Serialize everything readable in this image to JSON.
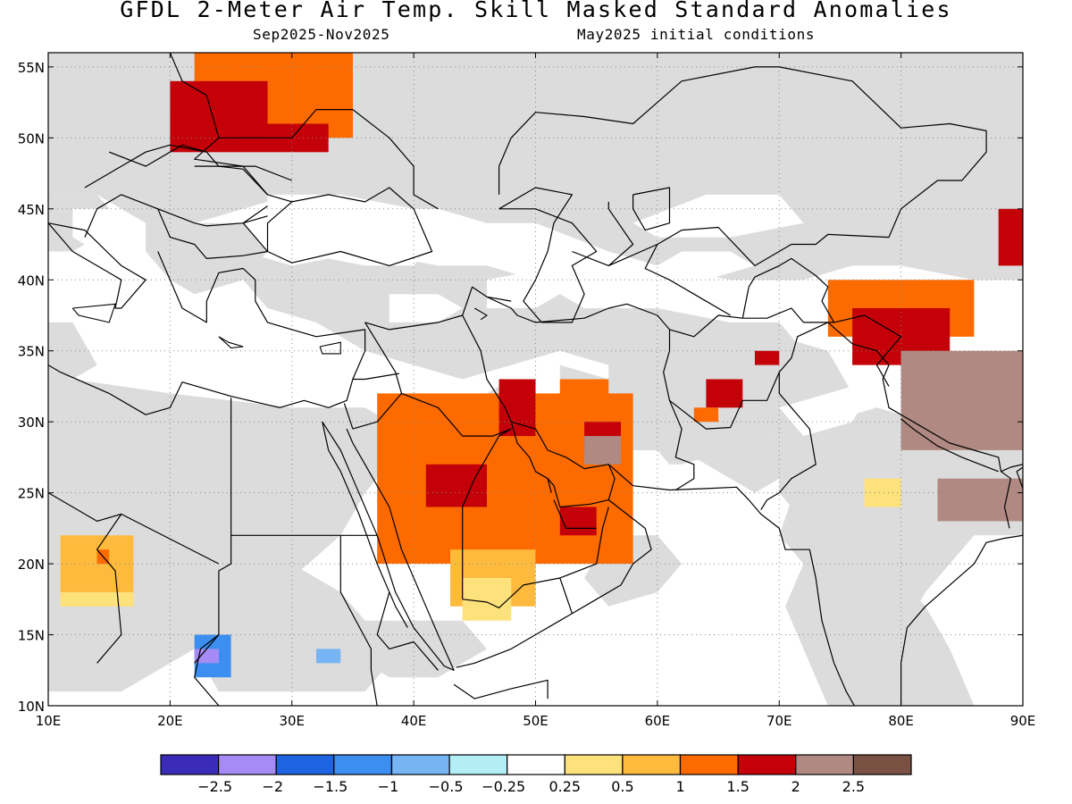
{
  "title": "GFDL 2-Meter Air Temp. Skill Masked Standard Anomalies",
  "subtitle_left": "Sep2025-Nov2025",
  "subtitle_right": "May2025 initial conditions",
  "map": {
    "lon_range": [
      10,
      90
    ],
    "lat_range": [
      10,
      56
    ],
    "lat_labels": [
      "10N",
      "15N",
      "20N",
      "25N",
      "30N",
      "35N",
      "40N",
      "45N",
      "50N",
      "55N"
    ],
    "lon_labels": [
      "10E",
      "20E",
      "30E",
      "40E",
      "50E",
      "60E",
      "70E",
      "80E",
      "90E"
    ],
    "ocean_color": "#ffffff",
    "masked_color": "#dcdcdc"
  },
  "colorbar": {
    "colors": [
      "#3a2cb8",
      "#a78bf5",
      "#1e64e0",
      "#3c8ef0",
      "#76b4f4",
      "#b2eef4",
      "#ffffff",
      "#fde27c",
      "#fdba3c",
      "#fd6a00",
      "#c40008",
      "#b08a82",
      "#7a5244"
    ],
    "labels": [
      "-2.5",
      "-2",
      "-1.5",
      "-1",
      "-0.5",
      "-0.25",
      "0.25",
      "0.5",
      "1",
      "1.5",
      "2",
      "2.5"
    ]
  },
  "anomaly_regions": [
    {
      "level": "1.5",
      "lon": [
        22,
        35
      ],
      "lat": [
        50,
        56
      ]
    },
    {
      "level": "2",
      "lon": [
        20,
        28
      ],
      "lat": [
        49,
        54
      ]
    },
    {
      "level": "2",
      "lon": [
        28,
        33
      ],
      "lat": [
        49,
        51
      ]
    },
    {
      "level": "1.5",
      "lon": [
        37,
        58
      ],
      "lat": [
        20,
        32
      ]
    },
    {
      "level": "2",
      "lon": [
        41,
        46
      ],
      "lat": [
        24,
        27
      ]
    },
    {
      "level": "1",
      "lon": [
        43,
        50
      ],
      "lat": [
        17,
        21
      ]
    },
    {
      "level": "0.5",
      "lon": [
        44,
        48
      ],
      "lat": [
        16,
        19
      ]
    },
    {
      "level": "2",
      "lon": [
        47,
        50
      ],
      "lat": [
        29,
        33
      ]
    },
    {
      "level": "1.5",
      "lon": [
        52,
        56
      ],
      "lat": [
        30,
        33
      ]
    },
    {
      "level": "2",
      "lon": [
        54,
        57
      ],
      "lat": [
        28,
        30
      ]
    },
    {
      "level": "2.5",
      "lon": [
        54,
        57
      ],
      "lat": [
        27,
        29
      ]
    },
    {
      "level": "2",
      "lon": [
        52,
        55
      ],
      "lat": [
        22,
        24
      ]
    },
    {
      "level": "1.5",
      "lon": [
        74,
        86
      ],
      "lat": [
        36,
        40
      ]
    },
    {
      "level": "2",
      "lon": [
        76,
        84
      ],
      "lat": [
        34,
        38
      ]
    },
    {
      "level": "2.5",
      "lon": [
        80,
        90
      ],
      "lat": [
        28,
        35
      ]
    },
    {
      "level": "2.5",
      "lon": [
        83,
        86
      ],
      "lat": [
        31,
        33
      ]
    },
    {
      "level": "2",
      "lon": [
        88,
        90
      ],
      "lat": [
        41,
        45
      ]
    },
    {
      "level": "1",
      "lon": [
        11,
        17
      ],
      "lat": [
        17,
        22
      ]
    },
    {
      "level": "0.5",
      "lon": [
        11,
        17
      ],
      "lat": [
        17,
        18
      ]
    },
    {
      "level": "1.5",
      "lon": [
        14,
        15
      ],
      "lat": [
        20,
        21
      ]
    },
    {
      "level": "-1.5",
      "lon": [
        22,
        25
      ],
      "lat": [
        12,
        15
      ]
    },
    {
      "level": "-2",
      "lon": [
        22,
        24
      ],
      "lat": [
        13,
        14
      ]
    },
    {
      "level": "-1",
      "lon": [
        32,
        34
      ],
      "lat": [
        13,
        14
      ]
    },
    {
      "level": "2",
      "lon": [
        64,
        67
      ],
      "lat": [
        31,
        33
      ]
    },
    {
      "level": "1.5",
      "lon": [
        63,
        65
      ],
      "lat": [
        30,
        31
      ]
    },
    {
      "level": "2",
      "lon": [
        68,
        70
      ],
      "lat": [
        34,
        35
      ]
    },
    {
      "level": "0.5",
      "lon": [
        77,
        80
      ],
      "lat": [
        24,
        26
      ]
    },
    {
      "level": "2.5",
      "lon": [
        83,
        90
      ],
      "lat": [
        23,
        26
      ]
    }
  ]
}
